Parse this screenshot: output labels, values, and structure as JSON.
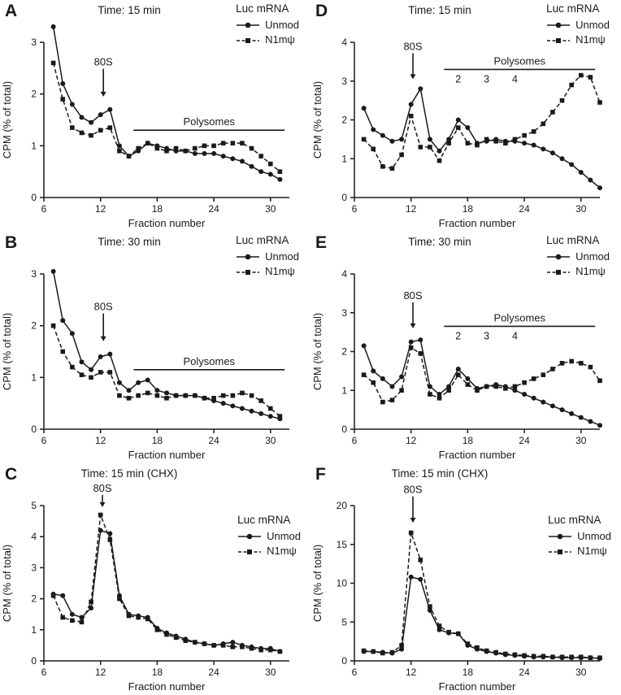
{
  "figure": {
    "legend_title": "Luc mRNA",
    "background": "#ffffff",
    "line_color": "#1a1a1a"
  },
  "chart_data": [
    {
      "panel": "A",
      "type": "line",
      "title": "Time: 15 min",
      "xlabel": "Fraction number",
      "ylabel": "CPM (% of total)",
      "xlim": [
        6,
        32
      ],
      "ylim": [
        0,
        3
      ],
      "xticks": [
        6,
        12,
        18,
        24,
        30
      ],
      "yticks": [
        0,
        1,
        2,
        3
      ],
      "legend_position": "top-right",
      "x": [
        7,
        8,
        9,
        10,
        11,
        12,
        13,
        14,
        15,
        16,
        17,
        18,
        19,
        20,
        21,
        22,
        23,
        24,
        25,
        26,
        27,
        28,
        29,
        30,
        31
      ],
      "series": [
        {
          "name": "Unmod",
          "marker": "circle",
          "line": "solid",
          "values": [
            3.3,
            2.2,
            1.8,
            1.55,
            1.45,
            1.6,
            1.7,
            1.0,
            0.8,
            0.9,
            1.05,
            1.0,
            0.95,
            0.9,
            0.9,
            0.85,
            0.85,
            0.85,
            0.8,
            0.75,
            0.7,
            0.6,
            0.5,
            0.45,
            0.35
          ]
        },
        {
          "name": "N1mψ",
          "marker": "square",
          "line": "dashed",
          "values": [
            2.6,
            1.9,
            1.35,
            1.25,
            1.2,
            1.3,
            1.35,
            0.9,
            0.8,
            0.95,
            1.05,
            0.95,
            0.9,
            0.95,
            0.9,
            0.95,
            1.0,
            1.0,
            1.05,
            1.05,
            1.05,
            0.95,
            0.8,
            0.65,
            0.5
          ]
        }
      ],
      "annotations": {
        "arrow": {
          "label": "80S",
          "x": 12.3,
          "label_y": 2.55,
          "tip_y": 1.95
        },
        "bracket": {
          "label": "Polysomes",
          "x1": 15.5,
          "x2": 31.5,
          "y": 1.3,
          "sublabels": []
        }
      }
    },
    {
      "panel": "B",
      "type": "line",
      "title": "Time: 30 min",
      "xlabel": "Fraction number",
      "ylabel": "CPM (% of total)",
      "xlim": [
        6,
        32
      ],
      "ylim": [
        0,
        3
      ],
      "xticks": [
        6,
        12,
        18,
        24,
        30
      ],
      "yticks": [
        0,
        1,
        2,
        3
      ],
      "legend_position": "top-right",
      "x": [
        7,
        8,
        9,
        10,
        11,
        12,
        13,
        14,
        15,
        16,
        17,
        18,
        19,
        20,
        21,
        22,
        23,
        24,
        25,
        26,
        27,
        28,
        29,
        30,
        31
      ],
      "series": [
        {
          "name": "Unmod",
          "marker": "circle",
          "line": "solid",
          "values": [
            3.05,
            2.1,
            1.85,
            1.3,
            1.15,
            1.4,
            1.45,
            0.9,
            0.75,
            0.9,
            0.95,
            0.75,
            0.7,
            0.65,
            0.65,
            0.65,
            0.6,
            0.55,
            0.5,
            0.45,
            0.4,
            0.35,
            0.3,
            0.25,
            0.2
          ]
        },
        {
          "name": "N1mψ",
          "marker": "square",
          "line": "dashed",
          "values": [
            2.0,
            1.5,
            1.2,
            1.05,
            1.0,
            1.1,
            1.1,
            0.65,
            0.6,
            0.65,
            0.7,
            0.65,
            0.6,
            0.65,
            0.65,
            0.65,
            0.6,
            0.6,
            0.65,
            0.65,
            0.7,
            0.65,
            0.55,
            0.4,
            0.25
          ]
        }
      ],
      "annotations": {
        "arrow": {
          "label": "80S",
          "x": 12.3,
          "label_y": 2.3,
          "tip_y": 1.7
        },
        "bracket": {
          "label": "Polysomes",
          "x1": 15.5,
          "x2": 31.5,
          "y": 1.15,
          "sublabels": []
        }
      }
    },
    {
      "panel": "C",
      "type": "line",
      "title": "Time: 15 min (CHX)",
      "xlabel": "Fraction number",
      "ylabel": "CPM (% of total)",
      "xlim": [
        6,
        32
      ],
      "ylim": [
        0,
        5
      ],
      "xticks": [
        6,
        12,
        18,
        24,
        30
      ],
      "yticks": [
        0,
        1,
        2,
        3,
        4,
        5
      ],
      "legend_position": "middle-right",
      "x": [
        7,
        8,
        9,
        10,
        11,
        12,
        13,
        14,
        15,
        16,
        17,
        18,
        19,
        20,
        21,
        22,
        23,
        24,
        25,
        26,
        27,
        28,
        29,
        30,
        31
      ],
      "series": [
        {
          "name": "Unmod",
          "marker": "circle",
          "line": "solid",
          "values": [
            2.15,
            2.1,
            1.5,
            1.4,
            1.7,
            4.2,
            4.1,
            2.1,
            1.5,
            1.45,
            1.4,
            1.05,
            0.9,
            0.8,
            0.7,
            0.6,
            0.55,
            0.5,
            0.55,
            0.6,
            0.5,
            0.45,
            0.4,
            0.4,
            0.3
          ]
        },
        {
          "name": "N1mψ",
          "marker": "square",
          "line": "dashed",
          "values": [
            2.1,
            1.4,
            1.3,
            1.25,
            1.9,
            4.7,
            3.9,
            2.0,
            1.45,
            1.4,
            1.35,
            1.0,
            0.85,
            0.75,
            0.65,
            0.6,
            0.55,
            0.5,
            0.5,
            0.45,
            0.45,
            0.4,
            0.35,
            0.35,
            0.3
          ]
        }
      ],
      "annotations": {
        "arrow": {
          "label": "80S",
          "x": 12.2,
          "label_y": 5.45,
          "tip_y": 4.95
        }
      }
    },
    {
      "panel": "D",
      "type": "line",
      "title": "Time: 15 min",
      "xlabel": "Fraction number",
      "ylabel": "CPM (% of total)",
      "xlim": [
        6,
        32
      ],
      "ylim": [
        0,
        4
      ],
      "xticks": [
        6,
        12,
        18,
        24,
        30
      ],
      "yticks": [
        0,
        1,
        2,
        3,
        4
      ],
      "legend_position": "top-right",
      "x": [
        7,
        8,
        9,
        10,
        11,
        12,
        13,
        14,
        15,
        16,
        17,
        18,
        19,
        20,
        21,
        22,
        23,
        24,
        25,
        26,
        27,
        28,
        29,
        30,
        31,
        32
      ],
      "series": [
        {
          "name": "Unmod",
          "marker": "circle",
          "line": "solid",
          "values": [
            2.3,
            1.75,
            1.6,
            1.45,
            1.5,
            2.4,
            2.8,
            1.5,
            1.2,
            1.5,
            2.0,
            1.8,
            1.4,
            1.45,
            1.5,
            1.45,
            1.45,
            1.4,
            1.35,
            1.25,
            1.15,
            1.0,
            0.85,
            0.65,
            0.45,
            0.25
          ]
        },
        {
          "name": "N1mψ",
          "marker": "square",
          "line": "dashed",
          "values": [
            1.5,
            1.25,
            0.8,
            0.75,
            1.1,
            2.1,
            1.3,
            1.3,
            0.95,
            1.4,
            1.8,
            1.4,
            1.35,
            1.5,
            1.45,
            1.4,
            1.5,
            1.6,
            1.7,
            1.9,
            2.2,
            2.5,
            2.9,
            3.15,
            3.1,
            2.45
          ]
        }
      ],
      "annotations": {
        "arrow": {
          "label": "80S",
          "x": 12.2,
          "label_y": 3.8,
          "tip_y": 3.05
        },
        "bracket": {
          "label": "Polysomes",
          "x1": 15.5,
          "x2": 31.5,
          "y": 3.3,
          "sublabels": [
            {
              "text": "2",
              "x": 17
            },
            {
              "text": "3",
              "x": 20
            },
            {
              "text": "4",
              "x": 23
            }
          ]
        }
      }
    },
    {
      "panel": "E",
      "type": "line",
      "title": "Time: 30 min",
      "xlabel": "Fraction number",
      "ylabel": "CPM (% of total)",
      "xlim": [
        6,
        32
      ],
      "ylim": [
        0,
        4
      ],
      "xticks": [
        6,
        12,
        18,
        24,
        30
      ],
      "yticks": [
        0,
        1,
        2,
        3,
        4
      ],
      "legend_position": "top-right",
      "x": [
        7,
        8,
        9,
        10,
        11,
        12,
        13,
        14,
        15,
        16,
        17,
        18,
        19,
        20,
        21,
        22,
        23,
        24,
        25,
        26,
        27,
        28,
        29,
        30,
        31,
        32
      ],
      "series": [
        {
          "name": "Unmod",
          "marker": "circle",
          "line": "solid",
          "values": [
            2.15,
            1.5,
            1.3,
            1.1,
            1.35,
            2.25,
            2.3,
            1.1,
            0.9,
            1.1,
            1.55,
            1.3,
            1.05,
            1.1,
            1.15,
            1.1,
            1.0,
            0.9,
            0.8,
            0.7,
            0.6,
            0.5,
            0.4,
            0.3,
            0.2,
            0.1
          ]
        },
        {
          "name": "N1mψ",
          "marker": "square",
          "line": "dashed",
          "values": [
            1.4,
            1.2,
            0.7,
            0.75,
            1.0,
            2.1,
            1.95,
            0.9,
            0.8,
            1.0,
            1.4,
            1.15,
            1.0,
            1.1,
            1.1,
            1.05,
            1.1,
            1.2,
            1.3,
            1.4,
            1.55,
            1.7,
            1.75,
            1.7,
            1.6,
            1.25
          ]
        }
      ],
      "annotations": {
        "arrow": {
          "label": "80S",
          "x": 12.2,
          "label_y": 3.35,
          "tip_y": 2.6
        },
        "bracket": {
          "label": "Polysomes",
          "x1": 15.5,
          "x2": 31.5,
          "y": 2.65,
          "sublabels": [
            {
              "text": "2",
              "x": 17
            },
            {
              "text": "3",
              "x": 20
            },
            {
              "text": "4",
              "x": 23
            }
          ]
        }
      }
    },
    {
      "panel": "F",
      "type": "line",
      "title": "Time: 15 min (CHX)",
      "xlabel": "Fraction number",
      "ylabel": "CPM (% of total)",
      "xlim": [
        6,
        32
      ],
      "ylim": [
        0,
        20
      ],
      "xticks": [
        6,
        12,
        18,
        24,
        30
      ],
      "yticks": [
        0,
        5,
        10,
        15,
        20
      ],
      "legend_position": "middle-right",
      "x": [
        7,
        8,
        9,
        10,
        11,
        12,
        13,
        14,
        15,
        16,
        17,
        18,
        19,
        20,
        21,
        22,
        23,
        24,
        25,
        26,
        27,
        28,
        29,
        30,
        31,
        32
      ],
      "series": [
        {
          "name": "Unmod",
          "marker": "circle",
          "line": "solid",
          "values": [
            1.2,
            1.2,
            1.1,
            1.0,
            1.5,
            10.8,
            10.5,
            6.5,
            4.0,
            3.6,
            3.5,
            2.0,
            1.5,
            1.2,
            1.0,
            0.8,
            0.7,
            0.6,
            0.5,
            0.5,
            0.5,
            0.4,
            0.4,
            0.4,
            0.4,
            0.3
          ]
        },
        {
          "name": "N1mψ",
          "marker": "square",
          "line": "dashed",
          "values": [
            1.3,
            1.2,
            1.0,
            1.1,
            2.0,
            16.5,
            13.0,
            7.0,
            4.5,
            3.7,
            3.5,
            2.2,
            1.7,
            1.3,
            1.1,
            0.9,
            0.8,
            0.7,
            0.6,
            0.6,
            0.5,
            0.5,
            0.5,
            0.5,
            0.4,
            0.4
          ]
        }
      ],
      "annotations": {
        "arrow": {
          "label": "80S",
          "x": 12.2,
          "label_y": 21.6,
          "tip_y": 17.8
        }
      }
    }
  ]
}
